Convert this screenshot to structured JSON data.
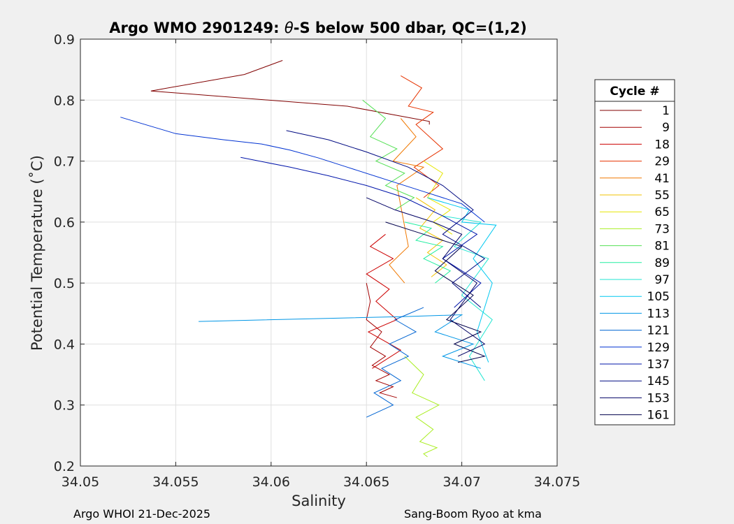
{
  "figure": {
    "title_prefix": "Argo WMO 2901249: ",
    "title_theta": "θ",
    "title_suffix": "-S below 500 dbar,  QC=(1,2)",
    "footer_left": "Argo WHOI 21-Dec-2025",
    "footer_right": "Sang-Boom Ryoo at kma",
    "background": "#f0f0f0",
    "axes_background": "#ffffff"
  },
  "chart_data": {
    "type": "line",
    "xlabel": "Salinity",
    "ylabel": "Potential Temperature (˚C)",
    "xlim": [
      34.05,
      34.075
    ],
    "ylim": [
      0.2,
      0.9
    ],
    "xticks": [
      34.05,
      34.055,
      34.06,
      34.065,
      34.07,
      34.075
    ],
    "xtick_labels": [
      "34.05",
      "34.055",
      "34.06",
      "34.065",
      "34.07",
      "34.075"
    ],
    "yticks": [
      0.2,
      0.3,
      0.4,
      0.5,
      0.6,
      0.7,
      0.8,
      0.9
    ],
    "ytick_labels": [
      "0.2",
      "0.3",
      "0.4",
      "0.5",
      "0.6",
      "0.7",
      "0.8",
      "0.9"
    ],
    "grid": true,
    "legend": {
      "title": "Cycle #",
      "placement": "outside-right",
      "entries": [
        {
          "name": "1",
          "color": "#800000"
        },
        {
          "name": "9",
          "color": "#a30000"
        },
        {
          "name": "18",
          "color": "#cc0000"
        },
        {
          "name": "29",
          "color": "#e63300"
        },
        {
          "name": "41",
          "color": "#f07800"
        },
        {
          "name": "55",
          "color": "#f2c200"
        },
        {
          "name": "65",
          "color": "#e6e600"
        },
        {
          "name": "73",
          "color": "#aaee22"
        },
        {
          "name": "81",
          "color": "#55e055"
        },
        {
          "name": "89",
          "color": "#22eea0"
        },
        {
          "name": "97",
          "color": "#22e6d2"
        },
        {
          "name": "105",
          "color": "#00c8f0"
        },
        {
          "name": "113",
          "color": "#0096e6"
        },
        {
          "name": "121",
          "color": "#0064d2"
        },
        {
          "name": "129",
          "color": "#0032d2"
        },
        {
          "name": "137",
          "color": "#0014aa"
        },
        {
          "name": "145",
          "color": "#000a82"
        },
        {
          "name": "153",
          "color": "#000064"
        },
        {
          "name": "161",
          "color": "#00004b"
        }
      ]
    },
    "series": [
      {
        "name": "1",
        "color": "#800000",
        "x": [
          34.0606,
          34.0586,
          34.0537,
          34.064,
          34.0683,
          34.0683
        ],
        "y": [
          0.865,
          0.842,
          0.815,
          0.79,
          0.765,
          0.76
        ]
      },
      {
        "name": "9",
        "color": "#a30000",
        "x": [
          34.065,
          34.0652,
          34.065,
          34.0658,
          34.0652,
          34.066,
          34.0653,
          34.0662,
          34.0655,
          34.0664,
          34.0657,
          34.0666
        ],
        "y": [
          0.5,
          0.47,
          0.44,
          0.42,
          0.395,
          0.38,
          0.365,
          0.35,
          0.34,
          0.33,
          0.32,
          0.312
        ]
      },
      {
        "name": "18",
        "color": "#cc0000",
        "x": [
          34.066,
          34.0652,
          34.0664,
          34.065,
          34.0662,
          34.0655,
          34.0666,
          34.0651,
          34.0668,
          34.0653
        ],
        "y": [
          0.58,
          0.56,
          0.54,
          0.515,
          0.49,
          0.47,
          0.44,
          0.42,
          0.39,
          0.36
        ]
      },
      {
        "name": "29",
        "color": "#e63300",
        "x": [
          34.0668,
          34.0679,
          34.0672,
          34.0685,
          34.0676,
          34.069,
          34.0675,
          34.0688,
          34.068
        ],
        "y": [
          0.84,
          0.82,
          0.79,
          0.78,
          0.76,
          0.72,
          0.69,
          0.66,
          0.64
        ]
      },
      {
        "name": "41",
        "color": "#f07800",
        "x": [
          34.0668,
          34.0676,
          34.0664,
          34.068,
          34.0666,
          34.0672,
          34.0662,
          34.067
        ],
        "y": [
          0.77,
          0.74,
          0.7,
          0.69,
          0.66,
          0.56,
          0.53,
          0.5
        ]
      },
      {
        "name": "55",
        "color": "#f2c200",
        "x": [
          34.0676,
          34.0686,
          34.0678,
          34.069,
          34.0682,
          34.0692,
          34.0684
        ],
        "y": [
          0.64,
          0.62,
          0.59,
          0.57,
          0.55,
          0.53,
          0.51
        ]
      },
      {
        "name": "65",
        "color": "#e6e600",
        "x": [
          34.068,
          34.069,
          34.0682,
          34.0694,
          34.0685,
          34.0695
        ],
        "y": [
          0.7,
          0.68,
          0.64,
          0.62,
          0.6,
          0.58
        ]
      },
      {
        "name": "73",
        "color": "#aaee22",
        "x": [
          34.067,
          34.068,
          34.0674,
          34.0688,
          34.0676,
          34.0685,
          34.0678,
          34.0687,
          34.068,
          34.0682
        ],
        "y": [
          0.38,
          0.35,
          0.32,
          0.3,
          0.28,
          0.26,
          0.24,
          0.23,
          0.22,
          0.215
        ]
      },
      {
        "name": "81",
        "color": "#55e055",
        "x": [
          34.0648,
          34.066,
          34.0652,
          34.0666,
          34.0655,
          34.067,
          34.066,
          34.0675,
          34.0665
        ],
        "y": [
          0.8,
          0.77,
          0.74,
          0.72,
          0.7,
          0.68,
          0.66,
          0.64,
          0.62
        ]
      },
      {
        "name": "89",
        "color": "#22eea0",
        "x": [
          34.067,
          34.0684,
          34.0676,
          34.069,
          34.068,
          34.0694,
          34.0686
        ],
        "y": [
          0.6,
          0.59,
          0.57,
          0.56,
          0.54,
          0.52,
          0.5
        ]
      },
      {
        "name": "97",
        "color": "#22e6d2",
        "x": [
          34.069,
          34.071,
          34.0696,
          34.0714,
          34.07,
          34.0716,
          34.0704,
          34.0712
        ],
        "y": [
          0.61,
          0.6,
          0.56,
          0.54,
          0.48,
          0.44,
          0.38,
          0.34
        ]
      },
      {
        "name": "105",
        "color": "#00c8f0",
        "x": [
          34.0682,
          34.0704,
          34.07,
          34.0718,
          34.0706,
          34.0716,
          34.0708,
          34.0714
        ],
        "y": [
          0.64,
          0.62,
          0.6,
          0.595,
          0.54,
          0.5,
          0.42,
          0.37
        ]
      },
      {
        "name": "113",
        "color": "#0096e6",
        "x": [
          34.0562,
          34.067,
          34.07,
          34.0686,
          34.0706,
          34.069,
          34.071
        ],
        "y": [
          0.437,
          0.445,
          0.448,
          0.42,
          0.4,
          0.38,
          0.36
        ]
      },
      {
        "name": "121",
        "color": "#0064d2",
        "x": [
          34.065,
          34.0664,
          34.0654,
          34.0668,
          34.0658,
          34.0672,
          34.0662,
          34.0676,
          34.0665,
          34.068
        ],
        "y": [
          0.28,
          0.3,
          0.32,
          0.34,
          0.36,
          0.38,
          0.4,
          0.42,
          0.44,
          0.46
        ]
      },
      {
        "name": "129",
        "color": "#0032d2",
        "x": [
          34.0521,
          34.055,
          34.0575,
          34.0595,
          34.061,
          34.0625,
          34.064,
          34.066,
          34.068,
          34.07,
          34.0712
        ],
        "y": [
          0.772,
          0.745,
          0.735,
          0.728,
          0.718,
          0.705,
          0.69,
          0.67,
          0.65,
          0.63,
          0.6
        ]
      },
      {
        "name": "137",
        "color": "#0014aa",
        "x": [
          34.0584,
          34.061,
          34.063,
          34.065,
          34.067,
          34.069,
          34.0708,
          34.069,
          34.071,
          34.0696
        ],
        "y": [
          0.706,
          0.69,
          0.676,
          0.66,
          0.64,
          0.61,
          0.58,
          0.54,
          0.5,
          0.46
        ]
      },
      {
        "name": "145",
        "color": "#000a82",
        "x": [
          34.0608,
          34.063,
          34.065,
          34.0672,
          34.069,
          34.0706,
          34.069,
          34.0712,
          34.0695,
          34.071
        ],
        "y": [
          0.75,
          0.735,
          0.715,
          0.69,
          0.66,
          0.62,
          0.58,
          0.54,
          0.5,
          0.46
        ]
      },
      {
        "name": "153",
        "color": "#000064",
        "x": [
          34.065,
          34.0665,
          34.0685,
          34.07,
          34.069,
          34.0708,
          34.0694,
          34.0712,
          34.0698
        ],
        "y": [
          0.64,
          0.62,
          0.6,
          0.58,
          0.54,
          0.5,
          0.44,
          0.4,
          0.38
        ]
      },
      {
        "name": "161",
        "color": "#00004b",
        "x": [
          34.066,
          34.068,
          34.07,
          34.0686,
          34.0706,
          34.0692,
          34.071,
          34.0696,
          34.0712,
          34.0698
        ],
        "y": [
          0.6,
          0.58,
          0.56,
          0.52,
          0.48,
          0.44,
          0.42,
          0.4,
          0.38,
          0.37
        ]
      }
    ]
  }
}
